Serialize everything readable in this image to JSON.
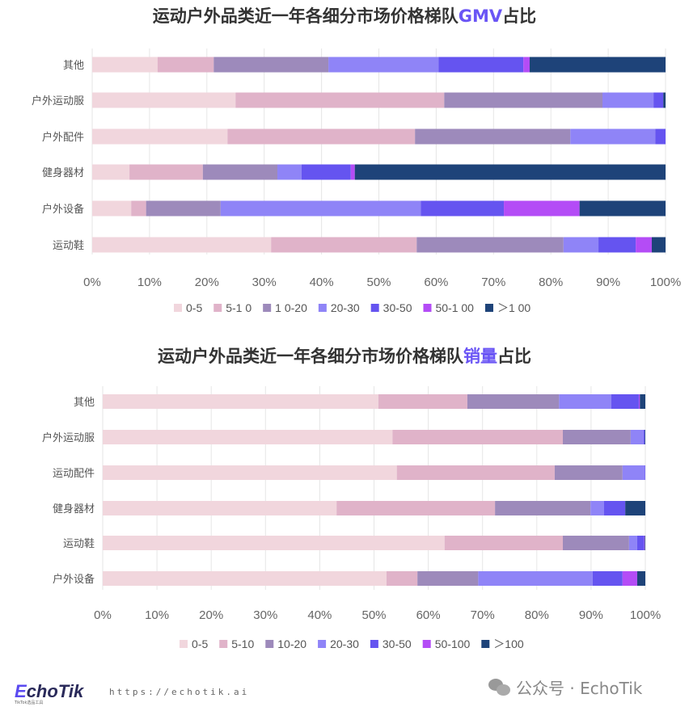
{
  "colors": {
    "0-5": "#f1d6dd",
    "5-10": "#e0b3c9",
    "10-20": "#9d8abb",
    "20-30": "#8f84f7",
    "30-50": "#6554f0",
    "50-100": "#b44cf6",
    ">100": "#1e4379"
  },
  "chart_data": [
    {
      "type": "bar",
      "orientation": "horizontal-stacked-100",
      "title_prefix": "运动户外品类近一年各细分市场价格梯队",
      "title_highlight": "GMV",
      "title_suffix": "占比",
      "categories": [
        "其他",
        "户外运动服",
        "户外配件",
        "健身器材",
        "户外设备",
        "运动鞋"
      ],
      "xlim": [
        0,
        100
      ],
      "xticks": [
        "0%",
        "10%",
        "20%",
        "30%",
        "40%",
        "50%",
        "60%",
        "70%",
        "80%",
        "90%",
        "100%"
      ],
      "legend_position": "bottom",
      "grid": true,
      "series": [
        {
          "name": "0-5",
          "key": "0-5",
          "values": [
            11.4,
            25.0,
            23.6,
            6.5,
            6.8,
            31.2
          ]
        },
        {
          "name": "5-1 0",
          "key": "5-10",
          "values": [
            9.8,
            36.4,
            32.7,
            12.8,
            2.6,
            25.4
          ]
        },
        {
          "name": "1 0-20",
          "key": "10-20",
          "values": [
            20.0,
            27.6,
            27.1,
            13.0,
            13.0,
            25.6
          ]
        },
        {
          "name": "20-30",
          "key": "20-30",
          "values": [
            19.2,
            8.9,
            14.8,
            4.2,
            34.9,
            6.1
          ]
        },
        {
          "name": "30-50",
          "key": "30-50",
          "values": [
            14.8,
            1.7,
            1.8,
            8.6,
            14.5,
            6.5
          ]
        },
        {
          "name": "50-1 00",
          "key": "50-100",
          "values": [
            1.1,
            0.0,
            0.0,
            0.7,
            13.2,
            2.8
          ]
        },
        {
          "name": "＞1 00",
          "key": ">100",
          "values": [
            23.7,
            0.4,
            0.0,
            54.2,
            15.0,
            2.4
          ]
        }
      ]
    },
    {
      "type": "bar",
      "orientation": "horizontal-stacked-100",
      "title_prefix": "运动户外品类近一年各细分市场价格梯队",
      "title_highlight": "销量",
      "title_suffix": "占比",
      "categories": [
        "其他",
        "户外运动服",
        "运动配件",
        "健身器材",
        "运动鞋",
        "户外设备"
      ],
      "xlim": [
        0,
        100
      ],
      "xticks": [
        "0%",
        "10%",
        "20%",
        "30%",
        "40%",
        "50%",
        "60%",
        "70%",
        "80%",
        "90%",
        "100%"
      ],
      "legend_position": "bottom",
      "grid": true,
      "series": [
        {
          "name": "0-5",
          "key": "0-5",
          "values": [
            50.8,
            53.4,
            54.2,
            43.1,
            63.0,
            52.3
          ]
        },
        {
          "name": "5-10",
          "key": "5-10",
          "values": [
            16.4,
            31.4,
            29.1,
            29.2,
            21.8,
            5.7
          ]
        },
        {
          "name": "10-20",
          "key": "10-20",
          "values": [
            16.9,
            12.5,
            12.5,
            17.6,
            12.2,
            11.2
          ]
        },
        {
          "name": "20-30",
          "key": "20-30",
          "values": [
            9.6,
            2.4,
            4.1,
            2.5,
            1.5,
            21.1
          ]
        },
        {
          "name": "30-50",
          "key": "30-50",
          "values": [
            5.1,
            0.2,
            0.1,
            3.9,
            1.3,
            5.5
          ]
        },
        {
          "name": "50-100",
          "key": "50-100",
          "values": [
            0.2,
            0.0,
            0.0,
            0.0,
            0.1,
            2.7
          ]
        },
        {
          "name": "＞100",
          "key": ">100",
          "values": [
            1.0,
            0.1,
            0.0,
            3.7,
            0.1,
            1.5
          ]
        }
      ]
    }
  ],
  "footer": {
    "logo": "EchoTik",
    "logo_sub": "TikTok选品工具",
    "url": "https://echotik.ai",
    "wechat": "公众号 · EchoTik"
  }
}
